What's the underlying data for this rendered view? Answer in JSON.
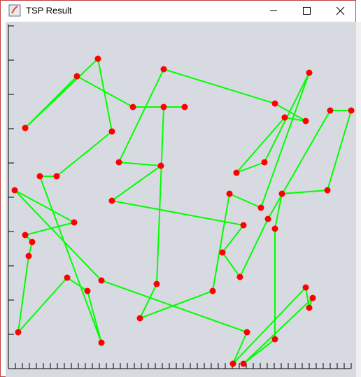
{
  "window": {
    "title": "TSP Result"
  },
  "chart_data": {
    "type": "line",
    "x": [
      24,
      128,
      148,
      69,
      45,
      133,
      113,
      84,
      14,
      29,
      34,
      24,
      94,
      9,
      133,
      341,
      321,
      425,
      430,
      435,
      336,
      381,
      381,
      391,
      456,
      490,
      460,
      371,
      331,
      306,
      336,
      148,
      218,
      158,
      222,
      381,
      425,
      395,
      326,
      366,
      430,
      361,
      316,
      292,
      188,
      212,
      222,
      252,
      178,
      98
    ],
    "y": [
      344,
      443,
      339,
      275,
      275,
      37,
      111,
      130,
      52,
      161,
      181,
      191,
      209,
      255,
      126,
      52,
      7,
      116,
      87,
      101,
      7,
      42,
      200,
      250,
      255,
      369,
      369,
      214,
      131,
      166,
      205,
      240,
      290,
      295,
      428,
      379,
      354,
      359,
      280,
      295,
      423,
      230,
      250,
      111,
      72,
      121,
      374,
      374,
      374,
      418
    ],
    "color": "#00ff00",
    "marker_color": "#ff0000",
    "closed": true,
    "xlim": [
      0,
      497
    ],
    "ylim": [
      0,
      494
    ],
    "xticks": [
      0,
      10,
      20,
      30,
      40,
      50,
      60,
      70,
      80,
      90,
      100,
      110,
      120,
      130,
      140,
      150,
      160,
      170,
      180,
      190,
      200,
      210,
      220,
      230,
      240,
      250,
      260,
      270,
      280,
      290,
      300,
      310,
      320,
      330,
      340,
      350,
      360,
      370,
      380,
      390,
      400,
      410,
      420,
      430,
      440,
      450,
      460,
      470,
      480,
      490
    ],
    "yticks": [
      49,
      98,
      147,
      196,
      245,
      294,
      343,
      392,
      441,
      490
    ]
  }
}
